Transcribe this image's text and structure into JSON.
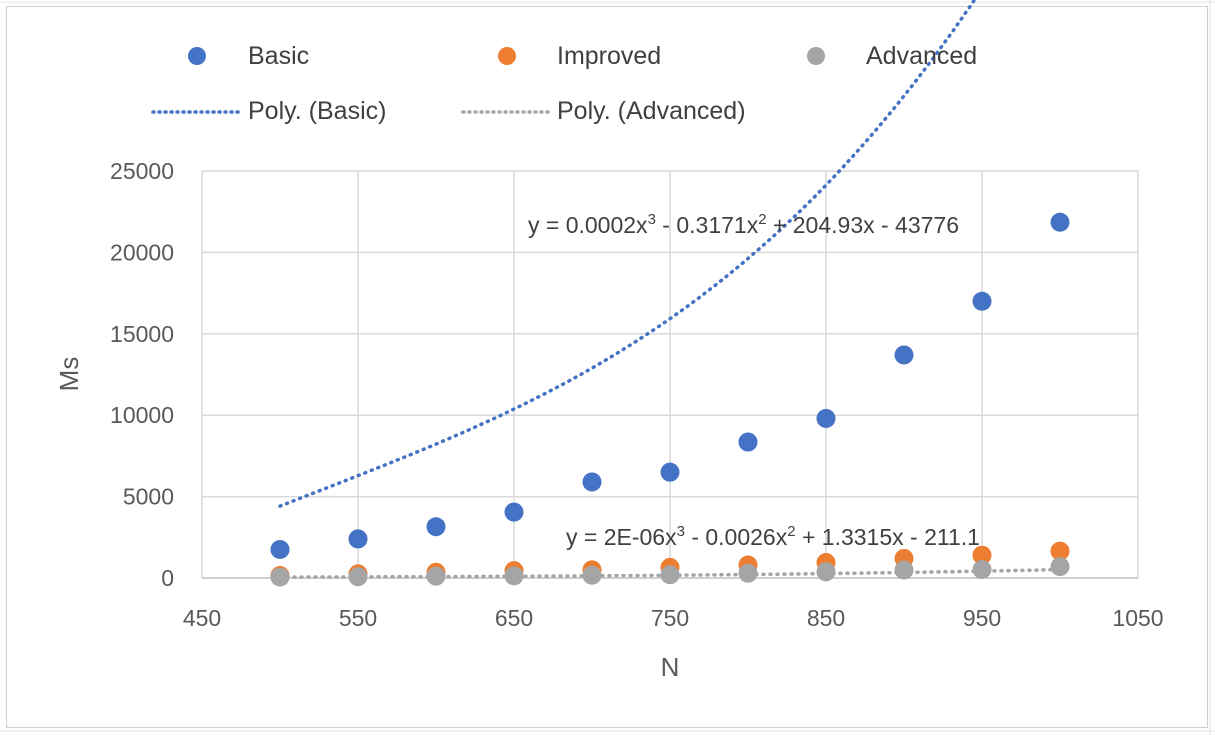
{
  "chart_data": {
    "type": "scatter",
    "xlabel": "N",
    "ylabel": "Ms",
    "xlim": [
      450,
      1050
    ],
    "ylim": [
      0,
      25000
    ],
    "x_ticks": [
      450,
      550,
      650,
      750,
      850,
      950,
      1050
    ],
    "y_ticks": [
      0,
      5000,
      10000,
      15000,
      20000,
      25000
    ],
    "grid": true,
    "legend_position": "top",
    "series": [
      {
        "name": "Basic",
        "color": "#4472C4",
        "x": [
          500,
          550,
          600,
          650,
          700,
          750,
          800,
          850,
          900,
          950,
          1000
        ],
        "values": [
          1750,
          2400,
          3150,
          4050,
          5900,
          6500,
          8350,
          9800,
          13700,
          17000,
          21850
        ]
      },
      {
        "name": "Improved",
        "color": "#ED7D31",
        "x": [
          500,
          550,
          600,
          650,
          700,
          750,
          800,
          850,
          900,
          950,
          1000
        ],
        "values": [
          150,
          250,
          350,
          450,
          500,
          650,
          800,
          950,
          1200,
          1400,
          1650
        ]
      },
      {
        "name": "Advanced",
        "color": "#A5A5A5",
        "x": [
          500,
          550,
          600,
          650,
          700,
          750,
          800,
          850,
          900,
          950,
          1000
        ],
        "values": [
          60,
          80,
          110,
          130,
          170,
          200,
          290,
          380,
          490,
          520,
          700
        ]
      }
    ],
    "trendlines": [
      {
        "name": "Poly. (Basic)",
        "color": "#4472C4",
        "coefficients": [
          0.0002,
          -0.3171,
          204.93,
          -43776
        ],
        "equation_label": {
          "prefix": "y = 0.0002x",
          "sup1": "3",
          "mid": " - 0.3171x",
          "sup2": "2",
          "suffix": " + 204.93x - 43776"
        }
      },
      {
        "name": "Poly. (Advanced)",
        "color": "#A5A5A5",
        "coefficients": [
          2e-06,
          -0.0026,
          1.3315,
          -211.1
        ],
        "equation_label": {
          "prefix": "y = 2E-06x",
          "sup1": "3",
          "mid": " - 0.0026x",
          "sup2": "2",
          "suffix": " + 1.3315x - 211.1"
        }
      }
    ]
  }
}
